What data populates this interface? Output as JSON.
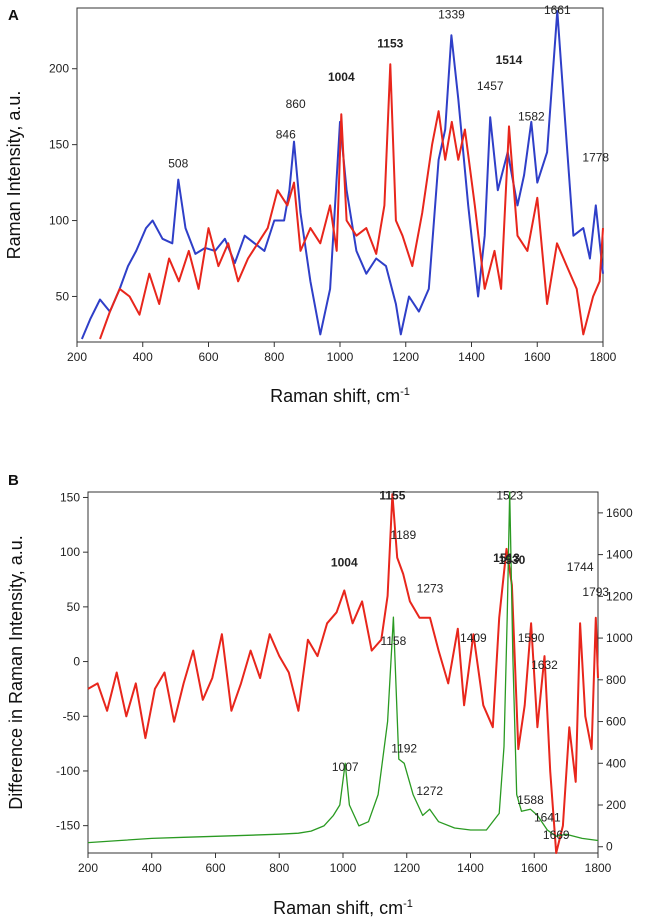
{
  "chart_data": [
    {
      "panel": "A",
      "type": "line",
      "xlabel": "Raman shift, cm",
      "xlabel_sup": "-1",
      "ylabel": "Raman Intensity, a.u.",
      "xlim": [
        200,
        1800
      ],
      "ylim": [
        20,
        240
      ],
      "xticks": [
        200,
        400,
        600,
        800,
        1000,
        1200,
        1400,
        1600,
        1800
      ],
      "yticks": [
        50,
        100,
        150,
        200
      ],
      "series": [
        {
          "name": "blue",
          "color": "#2f3fc8",
          "x": [
            215,
            240,
            270,
            300,
            330,
            355,
            380,
            410,
            430,
            460,
            490,
            508,
            530,
            560,
            590,
            620,
            650,
            680,
            710,
            740,
            770,
            800,
            830,
            846,
            860,
            880,
            910,
            940,
            970,
            1000,
            1020,
            1050,
            1080,
            1110,
            1140,
            1170,
            1185,
            1210,
            1240,
            1270,
            1300,
            1320,
            1339,
            1360,
            1390,
            1420,
            1440,
            1457,
            1480,
            1510,
            1540,
            1560,
            1582,
            1600,
            1630,
            1661,
            1690,
            1710,
            1740,
            1760,
            1778,
            1800
          ],
          "y": [
            22,
            35,
            48,
            40,
            55,
            70,
            80,
            95,
            100,
            88,
            85,
            127,
            95,
            78,
            82,
            80,
            88,
            72,
            90,
            85,
            80,
            100,
            100,
            120,
            152,
            105,
            60,
            25,
            55,
            165,
            120,
            80,
            65,
            75,
            70,
            45,
            25,
            50,
            40,
            55,
            140,
            160,
            222,
            180,
            110,
            50,
            90,
            168,
            120,
            145,
            110,
            130,
            165,
            125,
            145,
            238,
            150,
            90,
            95,
            75,
            110,
            65
          ]
        },
        {
          "name": "red",
          "color": "#e8261c",
          "x": [
            270,
            300,
            330,
            360,
            390,
            420,
            450,
            480,
            510,
            540,
            570,
            600,
            630,
            660,
            690,
            720,
            750,
            780,
            810,
            840,
            860,
            880,
            910,
            940,
            970,
            990,
            1004,
            1020,
            1050,
            1080,
            1110,
            1135,
            1153,
            1170,
            1190,
            1220,
            1250,
            1280,
            1300,
            1320,
            1340,
            1360,
            1380,
            1410,
            1440,
            1470,
            1490,
            1514,
            1540,
            1570,
            1600,
            1630,
            1660,
            1690,
            1720,
            1740,
            1770,
            1790,
            1800
          ],
          "y": [
            22,
            40,
            55,
            50,
            38,
            65,
            45,
            75,
            60,
            80,
            55,
            95,
            70,
            85,
            60,
            75,
            85,
            95,
            120,
            110,
            125,
            80,
            95,
            85,
            110,
            80,
            170,
            100,
            90,
            95,
            78,
            110,
            203,
            100,
            90,
            70,
            105,
            150,
            172,
            140,
            165,
            140,
            160,
            110,
            55,
            80,
            55,
            162,
            90,
            80,
            115,
            45,
            85,
            70,
            55,
            25,
            50,
            60,
            95
          ]
        }
      ],
      "annotations": [
        {
          "x": 508,
          "y": 135,
          "text": "508",
          "bold": false
        },
        {
          "x": 835,
          "y": 154,
          "text": "846",
          "bold": false
        },
        {
          "x": 865,
          "y": 174,
          "text": "860",
          "bold": false
        },
        {
          "x": 1004,
          "y": 192,
          "text": "1004",
          "bold": true
        },
        {
          "x": 1153,
          "y": 214,
          "text": "1153",
          "bold": true
        },
        {
          "x": 1339,
          "y": 233,
          "text": "1339",
          "bold": false
        },
        {
          "x": 1457,
          "y": 186,
          "text": "1457",
          "bold": false
        },
        {
          "x": 1514,
          "y": 203,
          "text": "1514",
          "bold": true
        },
        {
          "x": 1582,
          "y": 166,
          "text": "1582",
          "bold": false
        },
        {
          "x": 1661,
          "y": 236,
          "text": "1661",
          "bold": false
        },
        {
          "x": 1778,
          "y": 139,
          "text": "1778",
          "bold": false
        }
      ]
    },
    {
      "panel": "B",
      "type": "line",
      "xlabel": "Raman shift, cm",
      "xlabel_sup": "-1",
      "ylabel": "Difference in Raman Intensity, a.u.",
      "xlim": [
        200,
        1800
      ],
      "ylim": [
        -175,
        155
      ],
      "y2lim": [
        -30,
        1700
      ],
      "xticks": [
        200,
        400,
        600,
        800,
        1000,
        1200,
        1400,
        1600,
        1800
      ],
      "yticks": [
        -150,
        -100,
        -50,
        0,
        50,
        100,
        150
      ],
      "y2ticks": [
        0,
        200,
        400,
        600,
        800,
        1000,
        1200,
        1400,
        1600
      ],
      "series": [
        {
          "name": "red",
          "axis": "left",
          "color": "#e8261c",
          "x": [
            200,
            230,
            260,
            290,
            320,
            350,
            380,
            410,
            440,
            470,
            500,
            530,
            560,
            590,
            620,
            650,
            680,
            710,
            740,
            770,
            800,
            830,
            860,
            890,
            920,
            950,
            980,
            1004,
            1030,
            1060,
            1090,
            1120,
            1140,
            1155,
            1170,
            1189,
            1210,
            1240,
            1273,
            1300,
            1330,
            1360,
            1380,
            1409,
            1440,
            1470,
            1490,
            1513,
            1530,
            1550,
            1570,
            1590,
            1610,
            1632,
            1650,
            1669,
            1690,
            1710,
            1730,
            1744,
            1760,
            1780,
            1793,
            1800
          ],
          "y": [
            -25,
            -20,
            -45,
            -10,
            -50,
            -20,
            -70,
            -25,
            -10,
            -55,
            -20,
            10,
            -35,
            -15,
            25,
            -45,
            -20,
            10,
            -15,
            25,
            5,
            -10,
            -45,
            20,
            5,
            35,
            45,
            65,
            35,
            55,
            10,
            20,
            60,
            153,
            95,
            80,
            55,
            40,
            40,
            10,
            -20,
            30,
            -40,
            25,
            -40,
            -60,
            40,
            103,
            70,
            -80,
            -40,
            35,
            -60,
            5,
            -100,
            -175,
            -150,
            -60,
            -110,
            35,
            -50,
            -80,
            40,
            -15
          ]
        },
        {
          "name": "green",
          "axis": "right",
          "color": "#2a9a22",
          "x": [
            200,
            300,
            400,
            500,
            600,
            700,
            800,
            860,
            900,
            940,
            970,
            990,
            1007,
            1020,
            1050,
            1080,
            1110,
            1140,
            1158,
            1175,
            1192,
            1220,
            1250,
            1272,
            1300,
            1350,
            1400,
            1450,
            1490,
            1505,
            1515,
            1523,
            1533,
            1545,
            1560,
            1588,
            1610,
            1641,
            1669,
            1700,
            1750,
            1800
          ],
          "y": [
            20,
            30,
            40,
            45,
            50,
            55,
            60,
            65,
            75,
            100,
            150,
            200,
            400,
            200,
            100,
            120,
            250,
            600,
            1100,
            420,
            400,
            250,
            150,
            180,
            120,
            90,
            80,
            80,
            160,
            480,
            1100,
            1700,
            900,
            250,
            170,
            180,
            150,
            80,
            50,
            60,
            40,
            30
          ]
        }
      ],
      "annotations": [
        {
          "x": 1155,
          "y": 148,
          "text": "1155",
          "bold": true
        },
        {
          "x": 1189,
          "y": 112,
          "text": "1189",
          "bold": false
        },
        {
          "x": 1004,
          "y": 87,
          "text": "1004",
          "bold": true
        },
        {
          "x": 1273,
          "y": 63,
          "text": "1273",
          "bold": false
        },
        {
          "x": 1513,
          "y": 91,
          "text": "1513",
          "bold": true
        },
        {
          "x": 1530,
          "y": 89,
          "text": "1530",
          "bold": true
        },
        {
          "x": 1523,
          "y": 148,
          "text": "1523",
          "bold": false
        },
        {
          "x": 1744,
          "y": 83,
          "text": "1744",
          "bold": false
        },
        {
          "x": 1793,
          "y": 60,
          "text": "1793",
          "bold": false
        },
        {
          "x": 1409,
          "y": 18,
          "text": "1409",
          "bold": false
        },
        {
          "x": 1590,
          "y": 18,
          "text": "1590",
          "bold": false
        },
        {
          "x": 1632,
          "y": -7,
          "text": "1632",
          "bold": false
        },
        {
          "x": 1158,
          "y": 15,
          "text": "1158",
          "bold": false
        },
        {
          "x": 1192,
          "y": -83,
          "text": "1192",
          "bold": false
        },
        {
          "x": 1007,
          "y": -100,
          "text": "1007",
          "bold": false
        },
        {
          "x": 1272,
          "y": -122,
          "text": "1272",
          "bold": false
        },
        {
          "x": 1588,
          "y": -130,
          "text": "1588",
          "bold": false
        },
        {
          "x": 1641,
          "y": -146,
          "text": "1641",
          "bold": false
        },
        {
          "x": 1669,
          "y": -162,
          "text": "1669",
          "bold": false
        }
      ]
    }
  ]
}
